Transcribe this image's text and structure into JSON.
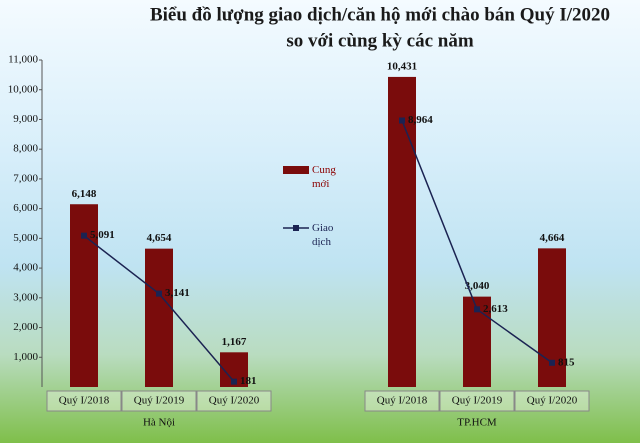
{
  "chart_data": {
    "type": "bar-line",
    "title": [
      "Biểu đồ lượng giao dịch/căn hộ mới chào bán Quý I/2020",
      "so với cùng kỳ các năm"
    ],
    "categories": [
      "Quý I/2018",
      "Quý I/2019",
      "Quý I/2020",
      "Quý I/2018",
      "Quý I/2019",
      "Quý I/2020"
    ],
    "category_groups": [
      "Hà Nội",
      "Hà Nội",
      "Hà Nội",
      "TP.HCM",
      "TP.HCM",
      "TP.HCM"
    ],
    "series": [
      {
        "name": "Cung mới",
        "type": "bar",
        "color": "#7a0c0c",
        "values": [
          6148,
          4654,
          1167,
          10431,
          3040,
          4664
        ],
        "value_labels": [
          "6,148",
          "4,654",
          "1,167",
          "10,431",
          "3,040",
          "4,664"
        ]
      },
      {
        "name": "Giao dịch",
        "type": "line",
        "color": "#1b2352",
        "values": [
          5091,
          3141,
          181,
          8964,
          2613,
          815
        ],
        "value_labels": [
          "5,091",
          "3,141",
          "181",
          "8,964",
          "2,613",
          "815"
        ]
      }
    ],
    "ylim": [
      0,
      11000
    ],
    "yticks": [
      {
        "value": 1000,
        "label": "1,000"
      },
      {
        "value": 2000,
        "label": "2,000"
      },
      {
        "value": 3000,
        "label": "3,000"
      },
      {
        "value": 4000,
        "label": "4,000"
      },
      {
        "value": 5000,
        "label": "5,000"
      },
      {
        "value": 6000,
        "label": "6,000"
      },
      {
        "value": 7000,
        "label": "7,000"
      },
      {
        "value": 8000,
        "label": "8,000"
      },
      {
        "value": 9000,
        "label": "9,000"
      },
      {
        "value": 10000,
        "label": "10,000"
      },
      {
        "value": 11000,
        "label": "11,000"
      }
    ]
  }
}
